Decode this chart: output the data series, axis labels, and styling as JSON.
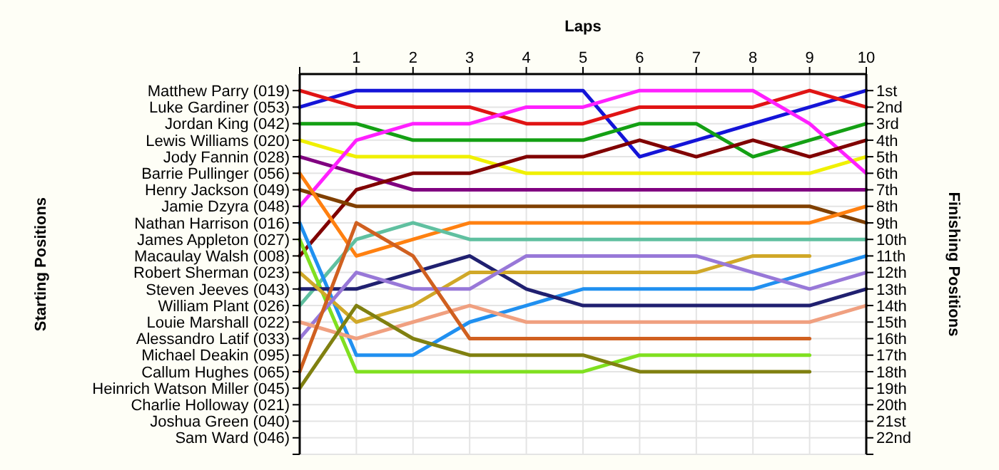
{
  "chart_data": {
    "type": "line",
    "xlabel": "Laps",
    "ylabel": "Finishing Positions",
    "grid": true,
    "x": [
      0,
      1,
      2,
      3,
      4,
      5,
      6,
      7,
      8,
      9,
      10
    ],
    "xlim": [
      0,
      10
    ],
    "xticks": [
      {
        "value": 0,
        "label": null
      },
      1,
      2,
      3,
      4,
      5,
      6,
      7,
      8,
      9,
      10
    ],
    "ylim": [
      23,
      0
    ],
    "yticks": [
      {
        "value": 1,
        "label": "1st"
      },
      {
        "value": 2,
        "label": "2nd"
      },
      {
        "value": 3,
        "label": "3rd"
      },
      {
        "value": 4,
        "label": "4th"
      },
      {
        "value": 5,
        "label": "5th"
      },
      {
        "value": 6,
        "label": "6th"
      },
      {
        "value": 7,
        "label": "7th"
      },
      {
        "value": 8,
        "label": "8th"
      },
      {
        "value": 9,
        "label": "9th"
      },
      {
        "value": 10,
        "label": "10th"
      },
      {
        "value": 11,
        "label": "11th"
      },
      {
        "value": 12,
        "label": "12th"
      },
      {
        "value": 13,
        "label": "13th"
      },
      {
        "value": 14,
        "label": "14th"
      },
      {
        "value": 15,
        "label": "15th"
      },
      {
        "value": 16,
        "label": "16th"
      },
      {
        "value": 17,
        "label": "17th"
      },
      {
        "value": 18,
        "label": "18th"
      },
      {
        "value": 19,
        "label": "19th"
      },
      {
        "value": 20,
        "label": "20th"
      },
      {
        "value": 21,
        "label": "21st"
      },
      {
        "value": 22,
        "label": "22nd"
      },
      {
        "value": 23,
        "label": null
      }
    ],
    "annotations": [
      "Starting Positions",
      "Matthew Parry (019)",
      "Luke Gardiner (053)",
      "Jordan King (042)",
      "Lewis Williams (020)",
      "Jody Fannin (028)",
      "Barrie Pullinger (056)",
      "Henry Jackson (049)",
      "Jamie Dzyra (048)",
      "Nathan Harrison (016)",
      "James Appleton (027)",
      "Macaulay Walsh (008)",
      "Robert Sherman (023)",
      "Steven Jeeves (043)",
      "William Plant (026)",
      "Louie Marshall (022)",
      "Alessandro Latif (033)",
      "Michael Deakin (095)",
      "Callum Hughes (065)",
      "Heinrich Watson Miller (045)",
      "Charlie Holloway (021)",
      "Joshua Green (040)",
      "Sam Ward (046)"
    ],
    "series": [
      {
        "color": "#1414d8",
        "values": [
          2,
          1,
          1,
          1,
          1,
          1,
          5,
          4,
          3,
          2,
          1
        ]
      },
      {
        "color": "#e01414",
        "values": [
          1,
          2,
          2,
          2,
          3,
          3,
          2,
          2,
          2,
          1,
          2
        ]
      },
      {
        "color": "#14a014",
        "values": [
          3,
          3,
          4,
          4,
          4,
          4,
          3,
          3,
          5,
          4,
          3
        ]
      },
      {
        "color": "#f0f000",
        "values": [
          4,
          5,
          5,
          5,
          6,
          6,
          6,
          6,
          6,
          6,
          5
        ]
      },
      {
        "color": "#800080",
        "values": [
          5,
          6,
          7,
          7,
          7,
          7,
          7,
          7,
          7,
          7,
          7
        ]
      },
      {
        "color": "#ff20ff",
        "values": [
          8,
          4,
          3,
          3,
          2,
          2,
          1,
          1,
          1,
          3,
          6
        ]
      },
      {
        "color": "#800000",
        "values": [
          11,
          7,
          6,
          6,
          5,
          5,
          4,
          5,
          4,
          5,
          4
        ]
      },
      {
        "color": "#804000",
        "values": [
          7,
          8,
          8,
          8,
          8,
          8,
          8,
          8,
          8,
          8,
          9
        ]
      },
      {
        "color": "#ff8010",
        "values": [
          6,
          11,
          10,
          9,
          9,
          9,
          9,
          9,
          9,
          9,
          8
        ]
      },
      {
        "color": "#60c0a0",
        "values": [
          14,
          10,
          9,
          10,
          10,
          10,
          10,
          10,
          10,
          10,
          10
        ]
      },
      {
        "color": "#2090f0",
        "values": [
          9,
          17,
          17,
          15,
          14,
          13,
          13,
          13,
          13,
          12,
          11
        ]
      },
      {
        "color": "#80e020",
        "values": [
          10,
          18,
          18,
          18,
          18,
          18,
          17,
          17,
          17,
          17,
          null
        ]
      },
      {
        "color": "#202070",
        "values": [
          13,
          13,
          12,
          11,
          13,
          14,
          14,
          14,
          14,
          14,
          13
        ]
      },
      {
        "color": "#d0a828",
        "values": [
          12,
          15,
          14,
          12,
          12,
          12,
          12,
          12,
          11,
          11,
          null
        ]
      },
      {
        "color": "#9878d8",
        "values": [
          16,
          12,
          13,
          13,
          11,
          11,
          11,
          11,
          12,
          13,
          12
        ]
      },
      {
        "color": "#f0a080",
        "values": [
          15,
          16,
          15,
          14,
          15,
          15,
          15,
          15,
          15,
          15,
          14
        ]
      },
      {
        "color": "#d06020",
        "values": [
          18,
          9,
          11,
          16,
          16,
          16,
          16,
          16,
          16,
          16,
          null
        ]
      },
      {
        "color": "#808010",
        "values": [
          19,
          14,
          16,
          17,
          17,
          17,
          18,
          18,
          18,
          18,
          null
        ]
      }
    ]
  }
}
